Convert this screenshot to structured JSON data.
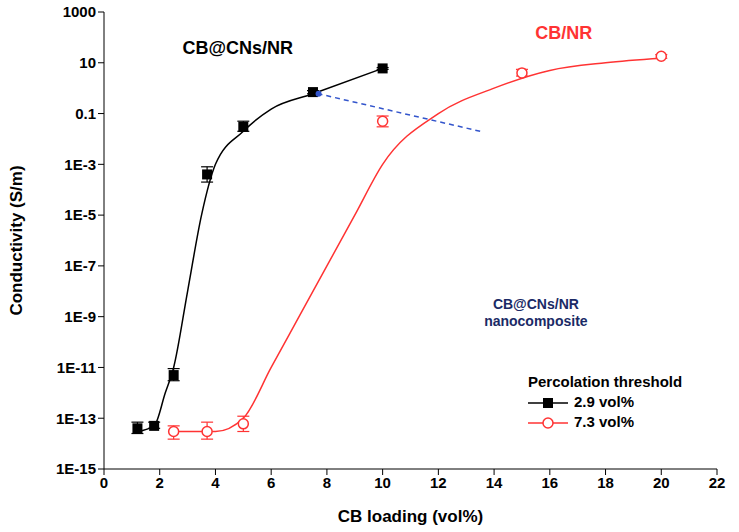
{
  "chart_data": {
    "type": "scatter",
    "log": "y",
    "grid": false,
    "legend": "lower right",
    "legend_title": "Percolation threshold",
    "x_label": "CB loading (vol%)",
    "y_label": "Conductivity (S/m)",
    "xlim": [
      0,
      22
    ],
    "xticks": [
      0,
      2,
      4,
      6,
      8,
      10,
      12,
      14,
      16,
      18,
      20,
      22
    ],
    "ylim": [
      1e-15,
      1000
    ],
    "yticks": [
      {
        "value": 1e-15,
        "label": "1E-15"
      },
      {
        "value": 1e-13,
        "label": "1E-13"
      },
      {
        "value": 1e-11,
        "label": "1E-11"
      },
      {
        "value": 1e-09,
        "label": "1E-9"
      },
      {
        "value": 1e-07,
        "label": "1E-7"
      },
      {
        "value": 1e-05,
        "label": "1E-5"
      },
      {
        "value": 0.001,
        "label": "1E-3"
      },
      0.1,
      10,
      1000
    ],
    "annotations": [
      {
        "text": "CB@CNs/NR nanocomposite"
      }
    ],
    "series": [
      {
        "name": "2.9 vol%",
        "label": "CB@CNs/NR",
        "color": "#000000",
        "marker": "square",
        "line_style": "solid",
        "x": [
          1.2,
          1.8,
          2.5,
          3.7,
          5,
          7.5,
          10
        ],
        "values": [
          4e-14,
          5e-14,
          5e-12,
          0.0004,
          0.03,
          0.7,
          6
        ],
        "errors": [
          [
            1.5e-14,
            3e-14
          ],
          [
            1e-14,
            2e-14
          ],
          [
            2e-12,
            4e-12
          ],
          [
            0.0002,
            0.0004
          ],
          [
            0.01,
            0.02
          ],
          [
            0.1,
            0.1
          ],
          [
            0.5,
            0.5
          ]
        ],
        "fit_x": [
          1.2,
          1.8,
          2.2,
          2.5,
          3,
          3.5,
          4,
          5,
          6,
          7.5,
          10
        ],
        "fit_values": [
          3e-14,
          5e-14,
          1e-12,
          1e-11,
          1e-08,
          1e-05,
          0.001,
          0.02,
          0.15,
          0.6,
          6
        ]
      },
      {
        "name": "7.3 vol%",
        "label": "CB/NR",
        "color": "#ff3333",
        "marker": "open_circle",
        "line_style": "solid",
        "x": [
          2.5,
          3.7,
          5,
          10,
          15,
          20
        ],
        "values": [
          3e-14,
          3e-14,
          6e-14,
          0.05,
          4,
          18
        ],
        "errors": [
          [
            1.5e-14,
            2e-14
          ],
          [
            1.5e-14,
            4e-14
          ],
          [
            3e-14,
            6e-14
          ],
          [
            0.02,
            0.03
          ],
          [
            1,
            1.5
          ],
          [
            3,
            3
          ]
        ],
        "fit_x": [
          2.5,
          4,
          5,
          6,
          7,
          8,
          9,
          10,
          12,
          14,
          16,
          18,
          20
        ],
        "fit_values": [
          3e-14,
          3e-14,
          1e-13,
          1e-11,
          1e-09,
          1e-07,
          1e-05,
          0.001,
          0.1,
          1,
          5,
          10,
          15
        ]
      }
    ]
  }
}
